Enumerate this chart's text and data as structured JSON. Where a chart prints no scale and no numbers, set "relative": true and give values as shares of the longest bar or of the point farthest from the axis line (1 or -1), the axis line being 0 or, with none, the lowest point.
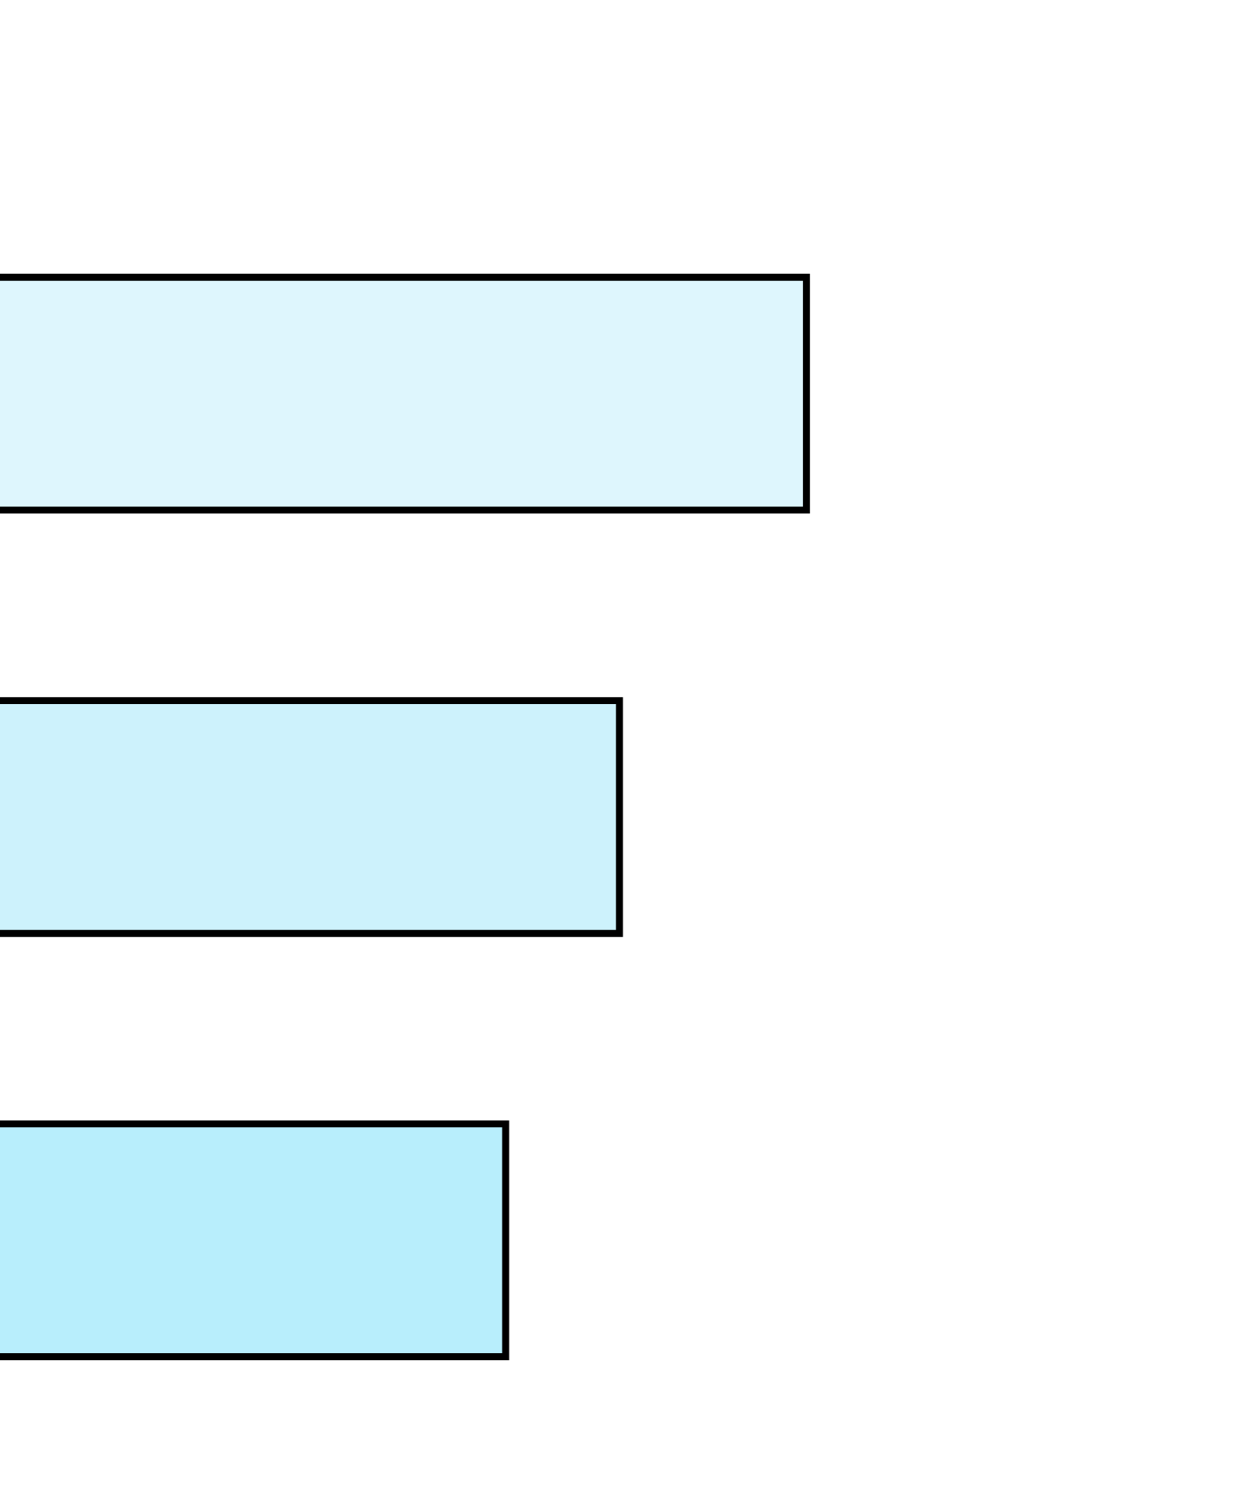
{
  "chart_data": {
    "type": "bar",
    "orientation": "horizontal",
    "relative": true,
    "categories": [
      null,
      null,
      null
    ],
    "values": [
      1,
      0.77,
      0.63
    ],
    "colors": [
      "#def6fd",
      "#cdf2fc",
      "#b8eefc"
    ]
  }
}
